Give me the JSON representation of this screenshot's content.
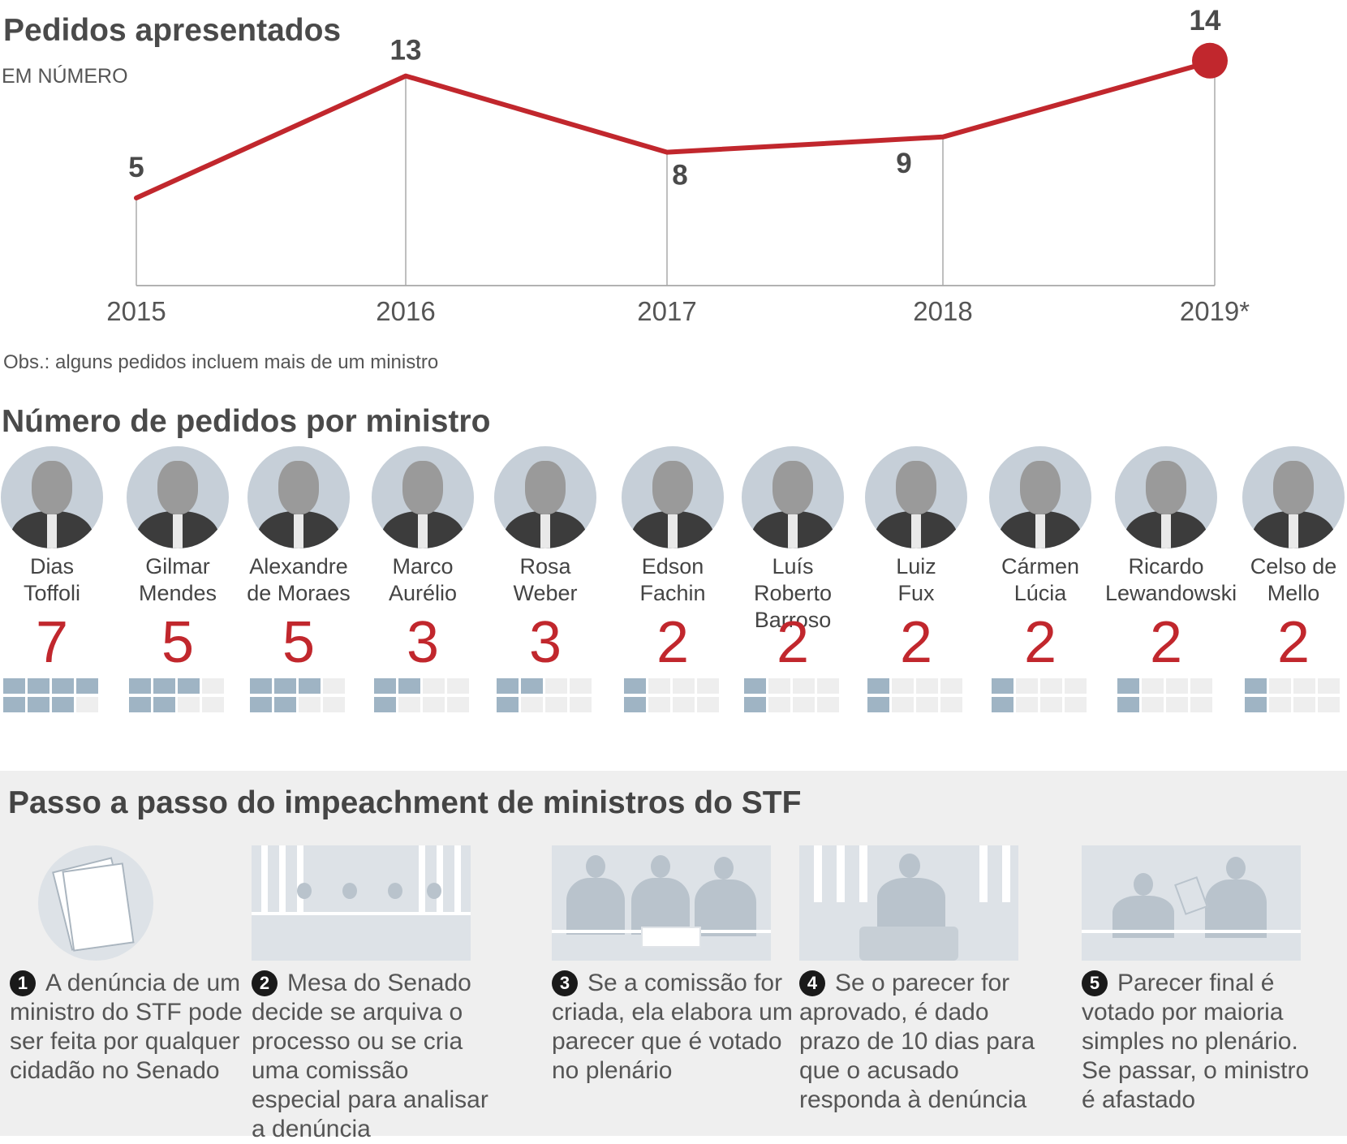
{
  "line_section": {
    "title": "Pedidos apresentados",
    "subtitle": "EM NÚMERO",
    "note": "Obs.: alguns pedidos incluem mais de um ministro"
  },
  "chart_data": {
    "type": "line",
    "title": "Pedidos apresentados",
    "subtitle": "EM NÚMERO",
    "categories": [
      "2015",
      "2016",
      "2017",
      "2018",
      "2019*"
    ],
    "values": [
      5,
      13,
      8,
      9,
      14
    ],
    "data_labels": [
      "5",
      "13",
      "8",
      "9",
      "14"
    ],
    "highlight_last": true,
    "line_color": "#c1272d",
    "ylim": [
      0,
      15
    ],
    "grid": false
  },
  "ministers_section": {
    "title": "Número de pedidos por ministro",
    "items": [
      {
        "name_line1": "Dias",
        "name_line2": "Toffoli",
        "count": 7
      },
      {
        "name_line1": "Gilmar",
        "name_line2": "Mendes",
        "count": 5
      },
      {
        "name_line1": "Alexandre",
        "name_line2": "de Moraes",
        "count": 5
      },
      {
        "name_line1": "Marco",
        "name_line2": "Aurélio",
        "count": 3
      },
      {
        "name_line1": "Rosa",
        "name_line2": "Weber",
        "count": 3
      },
      {
        "name_line1": "Edson",
        "name_line2": "Fachin",
        "count": 2
      },
      {
        "name_line1": "Luís Roberto",
        "name_line2": "Barroso",
        "count": 2
      },
      {
        "name_line1": "Luiz",
        "name_line2": "Fux",
        "count": 2
      },
      {
        "name_line1": "Cármen",
        "name_line2": "Lúcia",
        "count": 2
      },
      {
        "name_line1": "Ricardo",
        "name_line2": "Lewandowski",
        "count": 2
      },
      {
        "name_line1": "Celso de",
        "name_line2": "Mello",
        "count": 2
      }
    ]
  },
  "steps_section": {
    "title": "Passo a passo do impeachment de ministros do STF",
    "steps": [
      {
        "number": "1",
        "text": "A denúncia de um ministro do STF pode ser feita por qualquer cidadão no Senado"
      },
      {
        "number": "2",
        "text": "Mesa do Senado decide se arquiva o processo ou se cria uma comissão especial para analisar a denúncia"
      },
      {
        "number": "3",
        "text": "Se a comissão for criada, ela elabora um parecer que é votado no plenário"
      },
      {
        "number": "4",
        "text": "Se o parecer for aprovado, é dado prazo  de 10 dias para que o acusado responda à denúncia"
      },
      {
        "number": "5",
        "text": "Parecer final é votado por maioria simples no plenário. Se passar, o ministro é afastado"
      }
    ]
  },
  "colors": {
    "accent_red": "#c1272d",
    "grid_fill": "#9fb4c4",
    "grid_empty": "#eeeeee",
    "panel_bg": "#efefef"
  }
}
